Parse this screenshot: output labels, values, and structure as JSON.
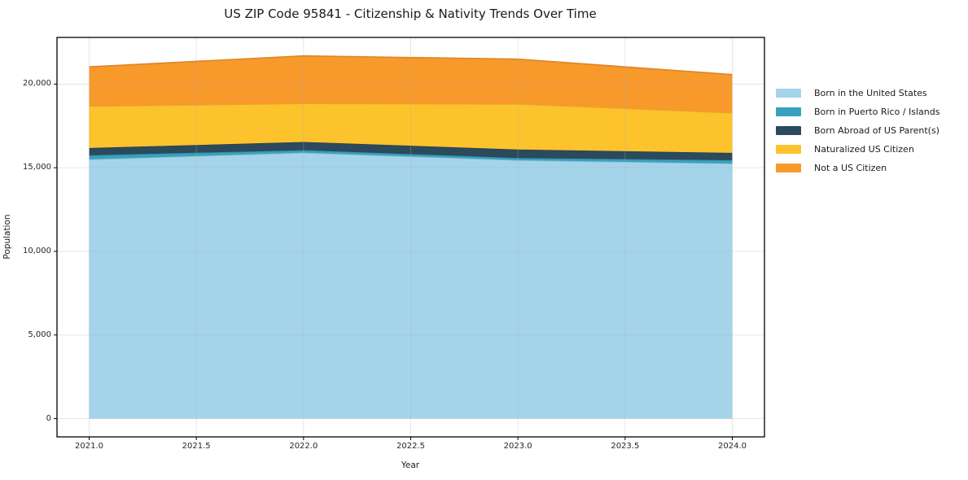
{
  "chart_data": {
    "type": "area",
    "stacked": true,
    "title": "US ZIP Code 95841 - Citizenship & Nativity Trends Over Time",
    "xlabel": "Year",
    "ylabel": "Population",
    "x": [
      2021,
      2022,
      2023,
      2024
    ],
    "series": [
      {
        "name": "Born in the United States",
        "color": "#a3d4ea",
        "values": [
          15500,
          15900,
          15450,
          15250
        ]
      },
      {
        "name": "Born in Puerto Rico / Islands",
        "color": "#38a2be",
        "values": [
          240,
          150,
          130,
          200
        ]
      },
      {
        "name": "Born Abroad of US Parent(s)",
        "color": "#2b4a5c",
        "values": [
          440,
          490,
          510,
          440
        ]
      },
      {
        "name": "Naturalized US Citizen",
        "color": "#fdc32c",
        "values": [
          2500,
          2300,
          2720,
          2390
        ]
      },
      {
        "name": "Not a US Citizen",
        "color": "#f8992b",
        "values": [
          2350,
          2850,
          2680,
          2290
        ]
      }
    ],
    "totals": [
      21030,
      21690,
      21490,
      20570
    ],
    "x_ticks": [
      2021.0,
      2021.5,
      2022.0,
      2022.5,
      2023.0,
      2023.5,
      2024.0
    ],
    "x_tick_labels": [
      "2021.0",
      "2021.5",
      "2022.0",
      "2022.5",
      "2023.0",
      "2023.5",
      "2024.0"
    ],
    "y_ticks": [
      0,
      5000,
      10000,
      15000,
      20000
    ],
    "y_tick_labels": [
      "0",
      "5,000",
      "10,000",
      "15,000",
      "20,000"
    ],
    "xlim": [
      2020.85,
      2024.15
    ],
    "ylim": [
      -1090,
      22790
    ],
    "grid": true,
    "legend_position": "right",
    "colors": {
      "background": "#ffffff",
      "frame": "#000000",
      "grid": "#b0b0b0",
      "text": "#262626"
    }
  }
}
